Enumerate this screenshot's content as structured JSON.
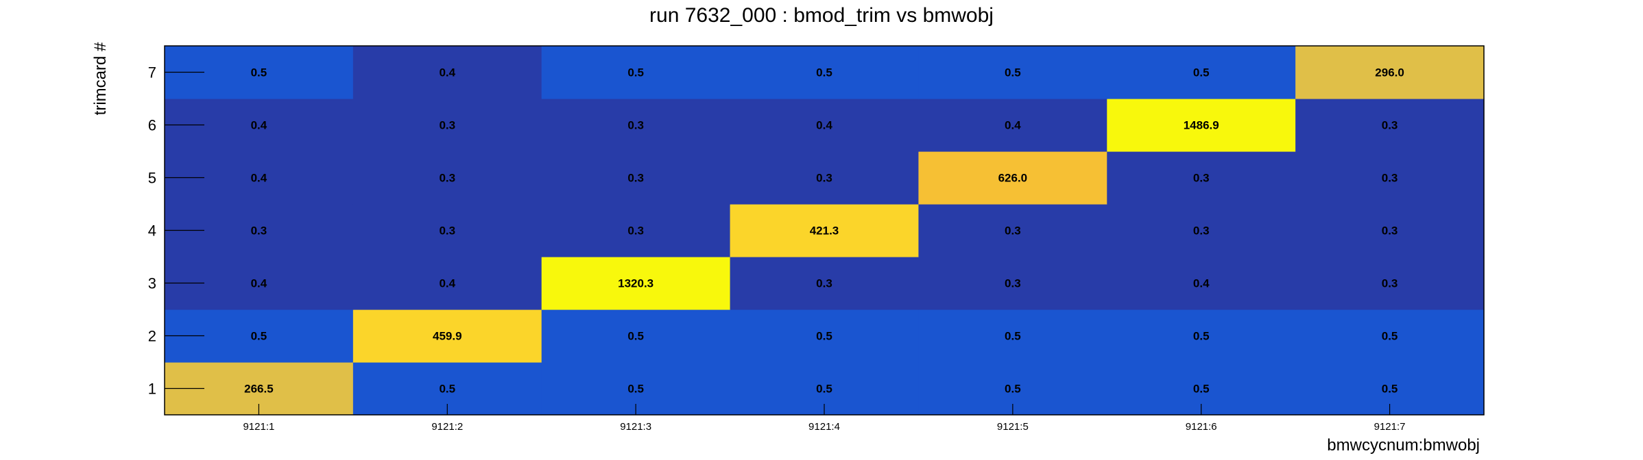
{
  "chart_data": {
    "type": "heatmap",
    "title": "run 7632_000 : bmod_trim vs bmwobj",
    "xlabel": "bmwcycnum:bmwobj",
    "ylabel": "trimcard #",
    "x_categories": [
      "9121:1",
      "9121:2",
      "9121:3",
      "9121:4",
      "9121:5",
      "9121:6",
      "9121:7"
    ],
    "y_categories": [
      "1",
      "2",
      "3",
      "4",
      "5",
      "6",
      "7"
    ],
    "values": [
      [
        266.5,
        0.5,
        0.5,
        0.5,
        0.5,
        0.5,
        0.5
      ],
      [
        0.5,
        459.9,
        0.5,
        0.5,
        0.5,
        0.5,
        0.5
      ],
      [
        0.4,
        0.4,
        1320.3,
        0.3,
        0.3,
        0.4,
        0.3
      ],
      [
        0.3,
        0.3,
        0.3,
        421.3,
        0.3,
        0.3,
        0.3
      ],
      [
        0.4,
        0.3,
        0.3,
        0.3,
        626.0,
        0.3,
        0.3
      ],
      [
        0.4,
        0.3,
        0.3,
        0.4,
        0.4,
        1486.9,
        0.3
      ],
      [
        0.5,
        0.4,
        0.5,
        0.5,
        0.5,
        0.5,
        296.0
      ]
    ],
    "value_labels": [
      [
        "266.5",
        "0.5",
        "0.5",
        "0.5",
        "0.5",
        "0.5",
        "0.5"
      ],
      [
        "0.5",
        "459.9",
        "0.5",
        "0.5",
        "0.5",
        "0.5",
        "0.5"
      ],
      [
        "0.4",
        "0.4",
        "1320.3",
        "0.3",
        "0.3",
        "0.4",
        "0.3"
      ],
      [
        "0.3",
        "0.3",
        "0.3",
        "421.3",
        "0.3",
        "0.3",
        "0.3"
      ],
      [
        "0.4",
        "0.3",
        "0.3",
        "0.3",
        "626.0",
        "0.3",
        "0.3"
      ],
      [
        "0.4",
        "0.3",
        "0.3",
        "0.4",
        "0.4",
        "1486.9",
        "0.3"
      ],
      [
        "0.5",
        "0.4",
        "0.5",
        "0.5",
        "0.5",
        "0.5",
        "296.0"
      ]
    ],
    "colors": {
      "low": "#283ca8",
      "mid": "#1a55d0",
      "warm_low": "#e0bf48",
      "warm": "#f6c034",
      "warm_high": "#fbd52a",
      "hot": "#f8f80c"
    }
  }
}
